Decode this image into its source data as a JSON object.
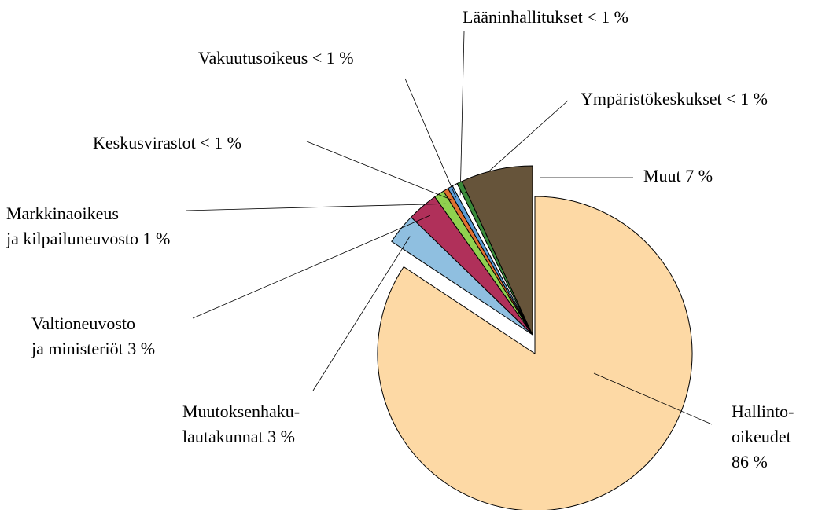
{
  "chart_data": {
    "type": "pie",
    "categories": [
      "Hallinto-\noikeudet",
      "Muutoksenhaku-\nlautakunnat",
      "Valtioneuvosto\nja ministeriöt",
      "Markkinaoikeus\nja kilpailuneuvosto",
      "Keskusvirastot",
      "Vakuutusoikeus",
      "Lääninhallitukset",
      "Ympäristökeskukset",
      "Muut"
    ],
    "values": [
      86,
      3,
      3,
      1,
      0.5,
      0.5,
      0.5,
      0.5,
      7
    ],
    "value_labels": [
      "86 %",
      "3 %",
      "3 %",
      "1 %",
      "< 1 %",
      "< 1 %",
      "< 1 %",
      "< 1 %",
      "7 %"
    ],
    "colors": [
      "#fdd9a5",
      "#8fbfe0",
      "#b0305a",
      "#8fd14f",
      "#e07030",
      "#5b9bd5",
      "#ffffff",
      "#3a8a3a",
      "#66543a"
    ]
  }
}
